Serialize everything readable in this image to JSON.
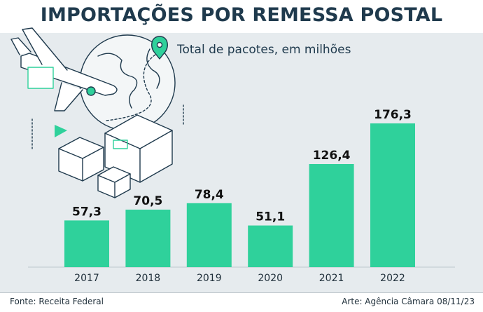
{
  "header": {
    "title": "IMPORTAÇÕES POR REMESSA POSTAL",
    "subtitle": "Total de pacotes, em milhões"
  },
  "footer": {
    "source": "Fonte: Receita Federal",
    "credit": "Arte: Agência Câmara 08/11/23"
  },
  "colors": {
    "bar": "#2fd19b",
    "title": "#1f3a4d",
    "panel": "#e6ebee",
    "illustration_accent": "#2fd19b"
  },
  "illustration": {
    "icons": [
      "airplane-icon",
      "globe-icon",
      "map-pin-icon",
      "package-box-icon"
    ]
  },
  "chart_data": {
    "type": "bar",
    "title": "IMPORTAÇÕES POR REMESSA POSTAL",
    "subtitle": "Total de pacotes, em milhões",
    "categories": [
      "2017",
      "2018",
      "2019",
      "2020",
      "2021",
      "2022"
    ],
    "values": [
      57.3,
      70.5,
      78.4,
      51.1,
      126.4,
      176.3
    ],
    "data_labels": [
      "57,3",
      "70,5",
      "78,4",
      "51,1",
      "126,4",
      "176,3"
    ],
    "xlabel": "",
    "ylabel": "",
    "ylim": [
      0,
      200
    ],
    "grid": false,
    "legend": "none"
  }
}
